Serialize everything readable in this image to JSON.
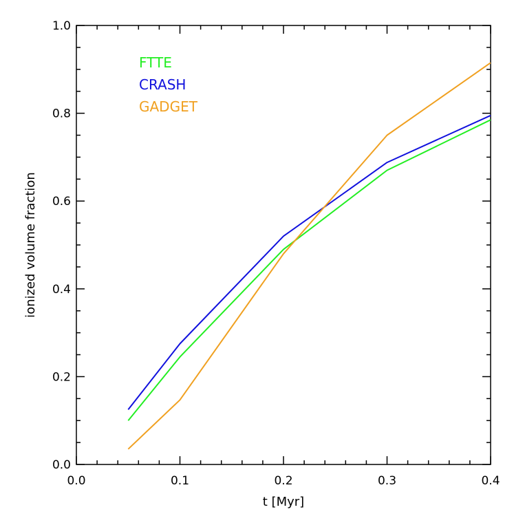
{
  "chart_data": {
    "type": "line",
    "title": "",
    "xlabel": "t [Myr]",
    "ylabel": "ionized volume fraction",
    "xlim": [
      0.0,
      0.4
    ],
    "ylim": [
      0.0,
      1.0
    ],
    "x_tick_labels": [
      "0.0",
      "0.1",
      "0.2",
      "0.3",
      "0.4"
    ],
    "y_tick_labels": [
      "0.0",
      "0.2",
      "0.4",
      "0.6",
      "0.8",
      "1.0"
    ],
    "grid": false,
    "legend_position": "top-left",
    "series": [
      {
        "name": "FTTE",
        "color": "#22ee22",
        "x": [
          0.05,
          0.1,
          0.2,
          0.3,
          0.4
        ],
        "y": [
          0.1,
          0.245,
          0.49,
          0.67,
          0.785
        ]
      },
      {
        "name": "CRASH",
        "color": "#1111dd",
        "x": [
          0.05,
          0.1,
          0.2,
          0.3,
          0.4
        ],
        "y": [
          0.125,
          0.275,
          0.52,
          0.688,
          0.795
        ]
      },
      {
        "name": "GADGET",
        "color": "#f0a020",
        "x": [
          0.05,
          0.1,
          0.2,
          0.3,
          0.4
        ],
        "y": [
          0.035,
          0.147,
          0.48,
          0.75,
          0.915
        ]
      }
    ]
  }
}
